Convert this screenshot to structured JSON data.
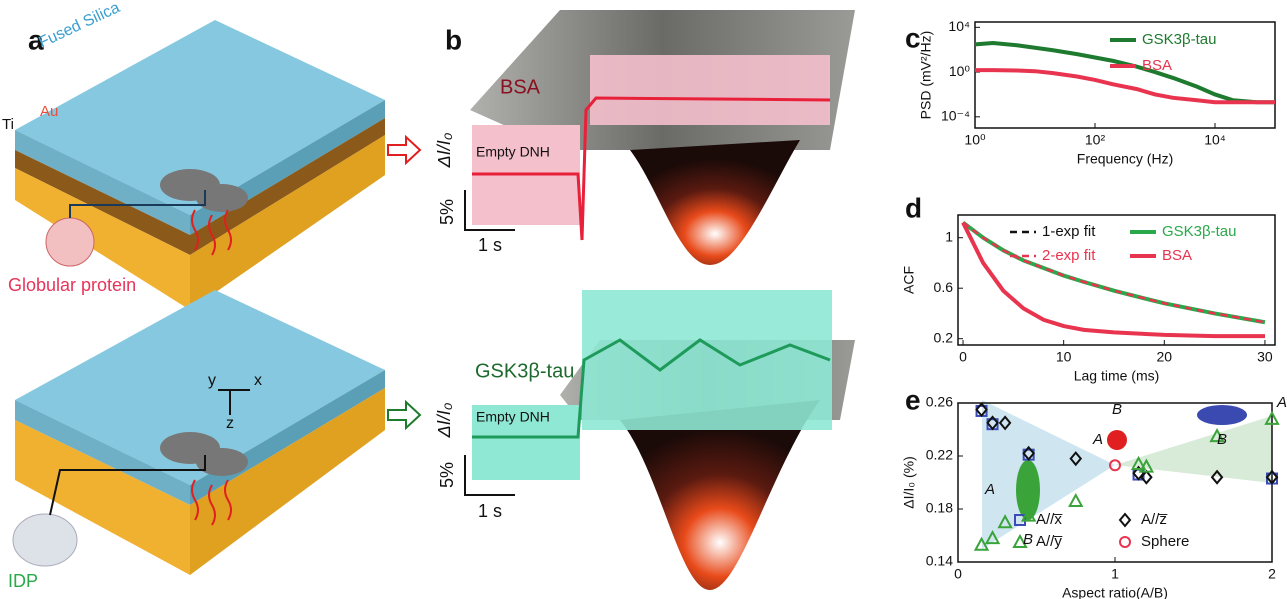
{
  "illustrations": {
    "a": {
      "label": "a",
      "fused_silica": "Fused Silica",
      "ti": "Ti",
      "au": "Au",
      "globular": "Globular protein",
      "axis_y": "y",
      "axis_x": "x",
      "axis_z": "z",
      "idp": "IDP"
    },
    "b": {
      "label": "b",
      "top": {
        "name": "BSA",
        "baseline": "Empty DNH",
        "ylabel": "ΔI/I₀",
        "scale_y": "5%",
        "scale_x": "1 s"
      },
      "bottom": {
        "name": "GSK3β-tau",
        "baseline": "Empty DNH",
        "ylabel": "ΔI/I₀",
        "scale_y": "5%",
        "scale_x": "1 s"
      }
    }
  },
  "chart_data": [
    {
      "type": "line",
      "label": "c",
      "xlabel": "Frequency (Hz)",
      "ylabel": "PSD (mV²/Hz)",
      "xscale": "log",
      "yscale": "log",
      "x": [
        1,
        2,
        5,
        10,
        20,
        50,
        100,
        200,
        500,
        1000,
        2000,
        5000,
        10000,
        20000,
        50000,
        100000
      ],
      "series": [
        {
          "name": "GSK3β-tau",
          "color": "#1e7a2e",
          "values": [
            300,
            400,
            250,
            150,
            90,
            40,
            20,
            10,
            3,
            1,
            0.3,
            0.05,
            0.01,
            0.003,
            0.002,
            0.002
          ]
        },
        {
          "name": "BSA",
          "color": "#e8344e",
          "values": [
            1.5,
            1.5,
            1.4,
            1.2,
            0.8,
            0.4,
            0.2,
            0.08,
            0.03,
            0.01,
            0.005,
            0.003,
            0.002,
            0.002,
            0.002,
            0.002
          ]
        }
      ],
      "xlim": [
        1,
        100000
      ],
      "ylim": [
        1e-05,
        30000
      ],
      "xticks": [
        {
          "value": 1,
          "label": "10⁰"
        },
        {
          "value": 100,
          "label": "10²"
        },
        {
          "value": 10000,
          "label": "10⁴"
        }
      ],
      "yticks": [
        {
          "value": 0.0001,
          "label": "10⁻⁴"
        },
        {
          "value": 1,
          "label": "10⁰"
        },
        {
          "value": 10000,
          "label": "10⁴"
        }
      ]
    },
    {
      "type": "line",
      "label": "d",
      "xlabel": "Lag time (ms)",
      "ylabel": "ACF",
      "x": [
        0,
        2,
        4,
        6,
        8,
        10,
        12,
        15,
        20,
        25,
        30
      ],
      "series": [
        {
          "name": "1-exp fit",
          "color": "#111111",
          "dash": true,
          "values": [
            1.12,
            0.8,
            0.58,
            0.44,
            0.35,
            0.3,
            0.27,
            0.25,
            0.23,
            0.22,
            0.22
          ]
        },
        {
          "name": "GSK3β-tau",
          "color": "#2aa84a",
          "values": [
            1.12,
            1.0,
            0.9,
            0.82,
            0.76,
            0.7,
            0.65,
            0.58,
            0.48,
            0.4,
            0.33
          ]
        },
        {
          "name": "2-exp fit",
          "color": "#e8344e",
          "dash": true,
          "values": [
            1.12,
            1.0,
            0.9,
            0.82,
            0.76,
            0.7,
            0.65,
            0.58,
            0.48,
            0.4,
            0.33
          ]
        },
        {
          "name": "BSA",
          "color": "#e8344e",
          "values": [
            1.12,
            0.8,
            0.58,
            0.44,
            0.35,
            0.3,
            0.27,
            0.25,
            0.23,
            0.22,
            0.22
          ]
        }
      ],
      "xlim": [
        -0.5,
        31
      ],
      "ylim": [
        0.15,
        1.18
      ],
      "xticks": [
        0,
        10,
        20,
        30
      ],
      "yticks": [
        0.2,
        0.6,
        1.0
      ]
    },
    {
      "type": "scatter",
      "label": "e",
      "xlabel": "Aspect ratio(A/B)",
      "ylabel": "ΔI/I₀ (%)",
      "series": [
        {
          "name": "A//x̅",
          "color": "#3b4bb8",
          "marker": "square",
          "x": [
            0.15,
            0.22,
            0.45,
            1.15,
            2.0
          ],
          "values": [
            0.254,
            0.244,
            0.221,
            0.206,
            0.203
          ]
        },
        {
          "name": "A//z̅",
          "color": "#111111",
          "marker": "diamond",
          "x": [
            0.15,
            0.22,
            0.3,
            0.45,
            0.75,
            1.15,
            1.2,
            1.65,
            2.0
          ],
          "values": [
            0.255,
            0.245,
            0.245,
            0.222,
            0.218,
            0.207,
            0.204,
            0.204,
            0.204
          ]
        },
        {
          "name": "A//y̅",
          "color": "#3aa33a",
          "marker": "triangle",
          "x": [
            0.15,
            0.22,
            0.3,
            0.45,
            0.75,
            1.15,
            1.2,
            1.65,
            2.0
          ],
          "values": [
            0.153,
            0.158,
            0.17,
            0.175,
            0.186,
            0.214,
            0.212,
            0.235,
            0.248
          ]
        },
        {
          "name": "Sphere",
          "color": "#e8344e",
          "marker": "circle",
          "x": [
            1.0
          ],
          "values": [
            0.213
          ]
        }
      ],
      "annotations": [
        "A",
        "B",
        "A",
        "B",
        "A",
        "B"
      ],
      "xlim": [
        0,
        2
      ],
      "ylim": [
        0.14,
        0.26
      ],
      "xticks": [
        0,
        1,
        2
      ],
      "yticks": [
        0.14,
        0.18,
        0.22,
        0.26
      ]
    }
  ]
}
